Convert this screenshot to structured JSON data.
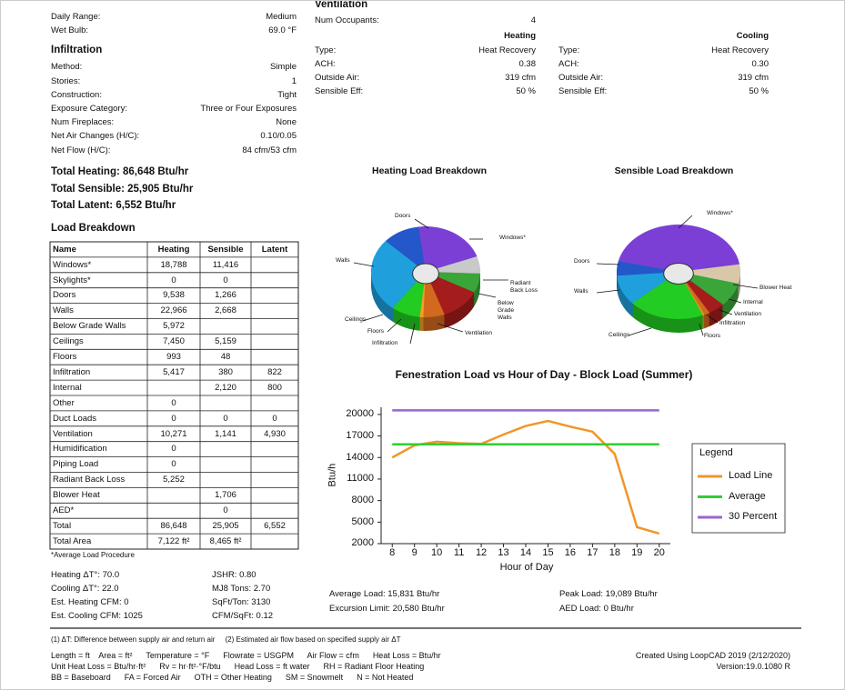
{
  "design_conditions": {
    "rows": [
      [
        "Daily Range:",
        "Medium"
      ],
      [
        "Wet Bulb:",
        "69.0 °F"
      ]
    ]
  },
  "infiltration": {
    "title": "Infiltration",
    "rows": [
      [
        "Method:",
        "Simple"
      ],
      [
        "Stories:",
        "1"
      ],
      [
        "Construction:",
        "Tight"
      ],
      [
        "Exposure Category:",
        "Three or Four Exposures"
      ],
      [
        "Num Fireplaces:",
        "None"
      ],
      [
        "Net Air Changes (H/C):",
        "0.10/0.05"
      ],
      [
        "Net Flow (H/C):",
        "84 cfm/53 cfm"
      ]
    ]
  },
  "totals": [
    "Total Heating: 86,648 Btu/hr",
    "Total Sensible: 25,905 Btu/hr",
    "Total Latent: 6,552 Btu/hr"
  ],
  "load_breakdown": {
    "title": "Load Breakdown",
    "header": [
      "Name",
      "Heating",
      "Sensible",
      "Latent"
    ],
    "rows": [
      [
        "Windows*",
        "18,788",
        "11,416",
        null
      ],
      [
        "Skylights*",
        "0",
        "0",
        null
      ],
      [
        "Doors",
        "9,538",
        "1,266",
        null
      ],
      [
        "Walls",
        "22,966",
        "2,668",
        null
      ],
      [
        "Below Grade Walls",
        "5,972",
        null,
        null
      ],
      [
        "Ceilings",
        "7,450",
        "5,159",
        null
      ],
      [
        "Floors",
        "993",
        "48",
        null
      ],
      [
        "Infiltration",
        "5,417",
        "380",
        "822"
      ],
      [
        "Internal",
        null,
        "2,120",
        "800"
      ],
      [
        "Other",
        "0",
        null,
        null
      ],
      [
        "Duct Loads",
        "0",
        "0",
        "0"
      ],
      [
        "Ventilation",
        "10,271",
        "1,141",
        "4,930"
      ],
      [
        "Humidification",
        "0",
        null,
        null
      ],
      [
        "Piping Load",
        "0",
        null,
        null
      ],
      [
        "Radiant Back Loss",
        "5,252",
        null,
        null
      ],
      [
        "Blower Heat",
        null,
        "1,706",
        null
      ],
      [
        "AED*",
        null,
        "0",
        null
      ],
      [
        "Total",
        "86,648",
        "25,905",
        "6,552"
      ],
      [
        "Total Area",
        "7,122 ft²",
        "8,465 ft²",
        null
      ]
    ],
    "footnote": "*Average Load Procedure"
  },
  "summary": {
    "left": [
      "Heating ΔT°: 70.0",
      "Cooling ΔT°: 22.0",
      "Est. Heating CFM: 0",
      "Est. Cooling CFM: 1025"
    ],
    "right": [
      "JSHR: 0.80",
      "MJ8 Tons: 2.70",
      "SqFt/Ton: 3130",
      "CFM/SqFt: 0.12"
    ]
  },
  "ventilation": {
    "title": "Ventilation",
    "occupants": [
      "Num Occupants:",
      "4"
    ],
    "heading_heating": "Heating",
    "heading_cooling": "Cooling",
    "heating_rows": [
      [
        "Type:",
        "Heat Recovery"
      ],
      [
        "ACH:",
        "0.38"
      ],
      [
        "Outside Air:",
        "319 cfm"
      ],
      [
        "Sensible Eff:",
        "50 %"
      ]
    ],
    "cooling_rows": [
      [
        "Type:",
        "Heat Recovery"
      ],
      [
        "ACH:",
        "0.30"
      ],
      [
        "Outside Air:",
        "319 cfm"
      ],
      [
        "Sensible Eff:",
        "50 %"
      ]
    ]
  },
  "heating_pie": {
    "title": "Heating Load Breakdown",
    "labels": [
      "Doors",
      "Windows*",
      "Walls",
      "Radiant Back Loss",
      "Below Grade Walls",
      "Ceilings",
      "Floors",
      "Infiltration",
      "Ventilation"
    ]
  },
  "sensible_pie": {
    "title": "Sensible Load Breakdown",
    "labels": [
      "Windows*",
      "Doors",
      "Walls",
      "Blower Heat",
      "Internal",
      "Ventilation",
      "Infiltration",
      "Floors",
      "Ceilings"
    ]
  },
  "chart_data": {
    "type": "line",
    "title": "Fenestration Load vs Hour of Day - Block Load (Summer)",
    "x_label": "Hour of Day",
    "y_label": "Btu/h",
    "x": [
      8,
      9,
      10,
      11,
      12,
      13,
      14,
      15,
      16,
      17,
      18,
      19,
      20
    ],
    "series": [
      {
        "name": "Load Line",
        "color": "#f0962a",
        "values": [
          14000,
          15700,
          16200,
          16000,
          15900,
          17200,
          18400,
          19089,
          18300,
          17600,
          14500,
          4300,
          3400
        ]
      },
      {
        "name": "Average",
        "color": "#33cc33",
        "values": [
          15831,
          15831,
          15831,
          15831,
          15831,
          15831,
          15831,
          15831,
          15831,
          15831,
          15831,
          15831,
          15831
        ]
      },
      {
        "name": "30 Percent",
        "color": "#9966cc",
        "values": [
          20580,
          20580,
          20580,
          20580,
          20580,
          20580,
          20580,
          20580,
          20580,
          20580,
          20580,
          20580,
          20580
        ]
      }
    ],
    "xlim": [
      7.5,
      20.5
    ],
    "xticks": [
      8,
      9,
      10,
      11,
      12,
      13,
      14,
      15,
      16,
      17,
      18,
      19,
      20
    ],
    "ylim": [
      2000,
      21000
    ],
    "yticks": [
      2000,
      5000,
      8000,
      11000,
      14000,
      17000,
      20000
    ],
    "legend_title": "Legend",
    "legend": "right"
  },
  "load_summary": [
    "Average Load: 15,831 Btu/hr",
    "Excursion Limit: 20,580 Btu/hr",
    "Peak Load: 19,089 Btu/hr",
    "AED Load: 0 Btu/hr"
  ],
  "footer": {
    "notes": "(1) ΔT: Difference between supply air and return air     (2) Estimated air flow based on specified supply air ΔT",
    "units": [
      "Length = ft    Area = ft²      Temperature = °F      Flowrate = USGPM      Air Flow = cfm      Heat Loss = Btu/hr",
      "Unit Heat Loss = Btu/hr·ft²      Rv = hr·ft²·°F/btu      Head Loss = ft water      RH = Radiant Floor Heating",
      "BB = Baseboard      FA = Forced Air      OTH = Other Heating      SM = Snowmelt      N = Not Heated"
    ],
    "created": "Created Using LoopCAD 2019 (2/12/2020)",
    "version": "Version:19.0.1080 R"
  }
}
